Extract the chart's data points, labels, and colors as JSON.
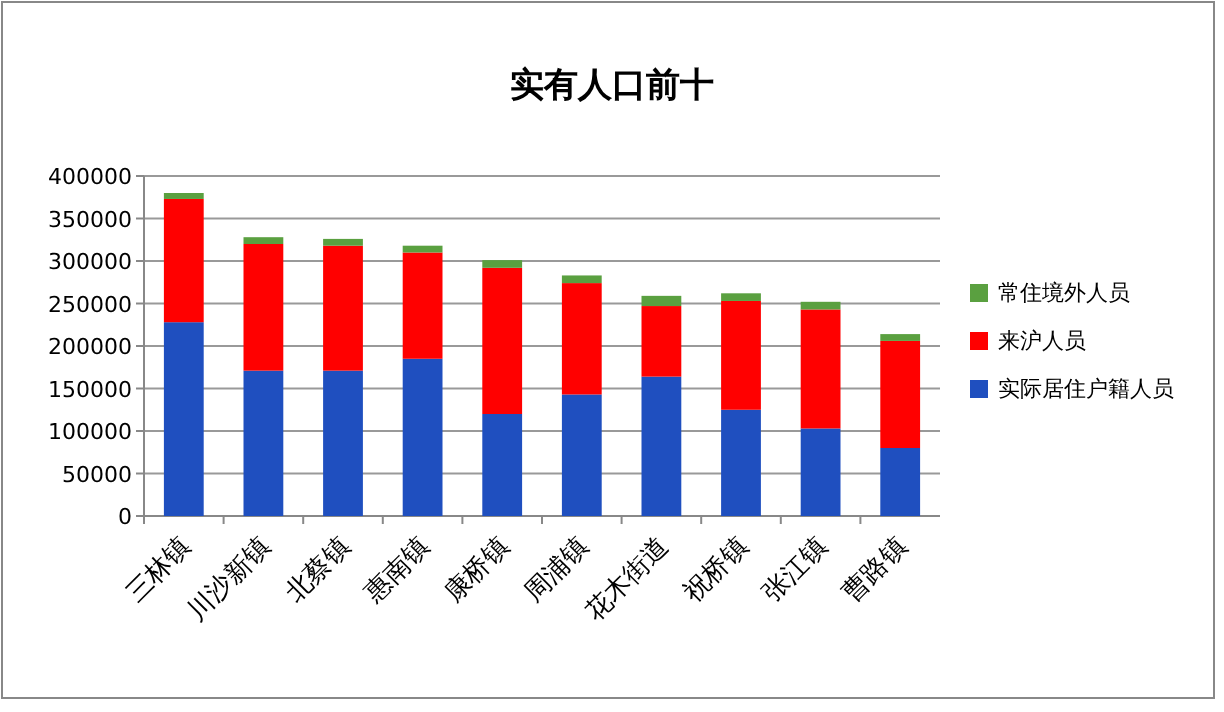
{
  "chart_data": {
    "type": "bar",
    "title": "实有人口前十",
    "stacked": true,
    "categories": [
      "三林镇",
      "川沙新镇",
      "北蔡镇",
      "惠南镇",
      "康桥镇",
      "周浦镇",
      "花木街道",
      "祝桥镇",
      "张江镇",
      "曹路镇"
    ],
    "series": [
      {
        "name": "实际居住户籍人员",
        "color": "#1f4fbf",
        "values": [
          228000,
          171000,
          171000,
          185000,
          120000,
          143000,
          164000,
          125000,
          103000,
          80000
        ]
      },
      {
        "name": "来沪人员",
        "color": "#ff0000",
        "values": [
          145000,
          149000,
          147000,
          125000,
          172000,
          131000,
          83000,
          128000,
          140000,
          126000
        ]
      },
      {
        "name": "常住境外人员",
        "color": "#5aa040",
        "values": [
          7000,
          8000,
          8000,
          8000,
          9000,
          9000,
          12000,
          9000,
          9000,
          8000
        ]
      }
    ],
    "ylim": [
      0,
      400000
    ],
    "yticks": [
      0,
      50000,
      100000,
      150000,
      200000,
      250000,
      300000,
      350000,
      400000
    ],
    "grid": "y",
    "legend": "right"
  }
}
